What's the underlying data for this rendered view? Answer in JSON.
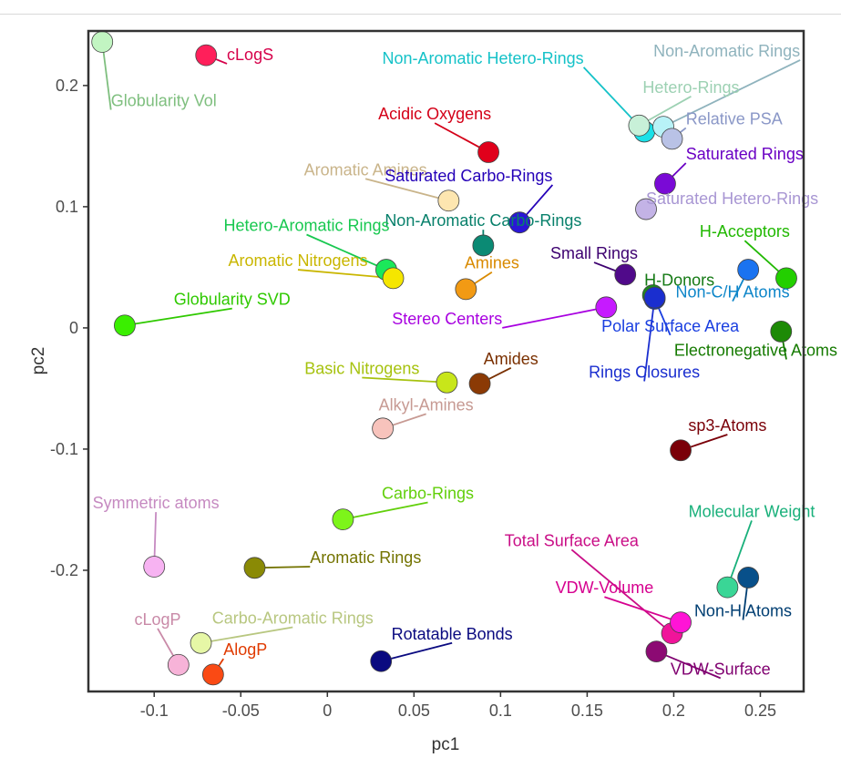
{
  "chart_data": {
    "type": "scatter",
    "title": "",
    "xlabel": "pc1",
    "ylabel": "pc2",
    "xlim": [
      -0.138,
      0.275
    ],
    "ylim": [
      -0.3,
      0.245
    ],
    "x_ticks": [
      {
        "value": -0.1,
        "label": "-0.1"
      },
      {
        "value": -0.05,
        "label": "-0.05"
      },
      {
        "value": 0,
        "label": "0"
      },
      {
        "value": 0.05,
        "label": "0.05"
      },
      {
        "value": 0.1,
        "label": "0.1"
      },
      {
        "value": 0.15,
        "label": "0.15"
      },
      {
        "value": 0.2,
        "label": "0.2"
      },
      {
        "value": 0.25,
        "label": "0.25"
      }
    ],
    "y_ticks": [
      {
        "value": 0.2,
        "label": "0.2"
      },
      {
        "value": 0.1,
        "label": "0.1"
      },
      {
        "value": 0,
        "label": "0"
      },
      {
        "value": -0.1,
        "label": "-0.1"
      },
      {
        "value": -0.2,
        "label": "-0.2"
      }
    ],
    "grid": false,
    "legend": "none",
    "points": [
      {
        "label": "Globularity Vol",
        "x": -0.13,
        "y": 0.236,
        "lx": -0.125,
        "ly": 0.183,
        "color": "#c2f5c2",
        "label_color": "#7fbf7f",
        "anchor": "start"
      },
      {
        "label": "cLogS",
        "x": -0.07,
        "y": 0.225,
        "lx": -0.058,
        "ly": 0.221,
        "color": "#ff1f5a",
        "label_color": "#d6004a",
        "anchor": "start"
      },
      {
        "label": "Non-Aromatic Hetero-Rings",
        "x": 0.183,
        "y": 0.162,
        "lx": 0.148,
        "ly": 0.218,
        "color": "#1ae1e8",
        "label_color": "#15c2c8",
        "anchor": "end"
      },
      {
        "label": "Non-Aromatic Rings",
        "x": 0.194,
        "y": 0.166,
        "lx": 0.273,
        "ly": 0.224,
        "color": "#b8f2f7",
        "label_color": "#8fb3bd",
        "anchor": "end"
      },
      {
        "label": "Hetero-Rings",
        "x": 0.18,
        "y": 0.167,
        "lx": 0.21,
        "ly": 0.194,
        "color": "#c8f0d8",
        "label_color": "#9dd1b3",
        "anchor": "middle"
      },
      {
        "label": "Relative PSA",
        "x": 0.199,
        "y": 0.156,
        "lx": 0.207,
        "ly": 0.168,
        "color": "#b9c2e6",
        "label_color": "#8a97c7",
        "anchor": "start"
      },
      {
        "label": "Acidic Oxygens",
        "x": 0.093,
        "y": 0.145,
        "lx": 0.062,
        "ly": 0.172,
        "color": "#e0001b",
        "label_color": "#d40018",
        "anchor": "middle"
      },
      {
        "label": "Saturated Rings",
        "x": 0.195,
        "y": 0.119,
        "lx": 0.207,
        "ly": 0.139,
        "color": "#7a0ad6",
        "label_color": "#6a00c4",
        "anchor": "start"
      },
      {
        "label": "Aromatic Amines",
        "x": 0.07,
        "y": 0.105,
        "lx": 0.022,
        "ly": 0.126,
        "color": "#fde6b0",
        "label_color": "#c9b48a",
        "anchor": "middle"
      },
      {
        "label": "Saturated Carbo-Rings",
        "x": 0.111,
        "y": 0.087,
        "lx": 0.13,
        "ly": 0.121,
        "color": "#2a16d6",
        "label_color": "#2400b8",
        "anchor": "end"
      },
      {
        "label": "Saturated Hetero-Rings",
        "x": 0.184,
        "y": 0.098,
        "lx": 0.184,
        "ly": 0.102,
        "color": "#c3b3e6",
        "label_color": "#a896d3",
        "anchor": "start"
      },
      {
        "label": "Non-Aromatic Carbo-Rings",
        "x": 0.09,
        "y": 0.068,
        "lx": 0.09,
        "ly": 0.084,
        "color": "#0b8a74",
        "label_color": "#08806b",
        "anchor": "middle"
      },
      {
        "label": "Hetero-Aromatic Rings",
        "x": 0.034,
        "y": 0.048,
        "lx": -0.012,
        "ly": 0.08,
        "color": "#1be85a",
        "label_color": "#18c850",
        "anchor": "middle"
      },
      {
        "label": "H-Acceptors",
        "x": 0.265,
        "y": 0.041,
        "lx": 0.241,
        "ly": 0.075,
        "color": "#23cf00",
        "label_color": "#20b800",
        "anchor": "middle"
      },
      {
        "label": "Aromatic Nitrogens",
        "x": 0.038,
        "y": 0.041,
        "lx": -0.017,
        "ly": 0.051,
        "color": "#f5e600",
        "label_color": "#c9b600",
        "anchor": "middle"
      },
      {
        "label": "Small Rings",
        "x": 0.172,
        "y": 0.044,
        "lx": 0.154,
        "ly": 0.057,
        "color": "#500a8a",
        "label_color": "#3d0070",
        "anchor": "middle"
      },
      {
        "label": "H-Donors",
        "x": 0.188,
        "y": 0.027,
        "lx": 0.183,
        "ly": 0.035,
        "color": "#1f8a1f",
        "label_color": "#157a15",
        "anchor": "start"
      },
      {
        "label": "Non-C/H Atoms",
        "x": 0.243,
        "y": 0.048,
        "lx": 0.234,
        "ly": 0.025,
        "color": "#1a73f0",
        "label_color": "#0e86c9",
        "anchor": "middle"
      },
      {
        "label": "Amines",
        "x": 0.08,
        "y": 0.032,
        "lx": 0.095,
        "ly": 0.049,
        "color": "#f29a14",
        "label_color": "#d98a00",
        "anchor": "middle"
      },
      {
        "label": "Globularity SVD",
        "x": -0.117,
        "y": 0.002,
        "lx": -0.055,
        "ly": 0.019,
        "color": "#3aef00",
        "label_color": "#2fc900",
        "anchor": "middle"
      },
      {
        "label": "Stereo Centers",
        "x": 0.161,
        "y": 0.017,
        "lx": 0.101,
        "ly": 0.003,
        "color": "#c61aff",
        "label_color": "#a800e0",
        "anchor": "end"
      },
      {
        "label": "Polar Surface Area",
        "x": 0.189,
        "y": 0.024,
        "lx": 0.198,
        "ly": -0.003,
        "color": "#0633c9",
        "label_color": "#1a3fe0",
        "anchor": "middle"
      },
      {
        "label": "Electronegative Atoms",
        "x": 0.262,
        "y": -0.003,
        "lx": 0.265,
        "ly": -0.023,
        "color": "#1d8a06",
        "label_color": "#157a00",
        "anchor": "middle"
      },
      {
        "label": "Amides",
        "x": 0.088,
        "y": -0.046,
        "lx": 0.106,
        "ly": -0.03,
        "color": "#8b3a05",
        "label_color": "#7a3000",
        "anchor": "middle"
      },
      {
        "label": "Basic Nitrogens",
        "x": 0.069,
        "y": -0.045,
        "lx": 0.02,
        "ly": -0.038,
        "color": "#c8e61a",
        "label_color": "#a6c20e",
        "anchor": "middle"
      },
      {
        "label": "Rings Closures",
        "x": 0.189,
        "y": 0.025,
        "lx": 0.183,
        "ly": -0.041,
        "color": "#1a2ecf",
        "label_color": "#1a2ecf",
        "anchor": "middle"
      },
      {
        "label": "Alkyl-Amines",
        "x": 0.032,
        "y": -0.083,
        "lx": 0.057,
        "ly": -0.068,
        "color": "#f7c3bc",
        "label_color": "#c79a93",
        "anchor": "middle"
      },
      {
        "label": "sp3-Atoms",
        "x": 0.204,
        "y": -0.101,
        "lx": 0.231,
        "ly": -0.085,
        "color": "#7a0008",
        "label_color": "#7a0008",
        "anchor": "middle"
      },
      {
        "label": "Carbo-Rings",
        "x": 0.009,
        "y": -0.158,
        "lx": 0.058,
        "ly": -0.141,
        "color": "#7df51a",
        "label_color": "#62cf0b",
        "anchor": "middle"
      },
      {
        "label": "Symmetric atoms",
        "x": -0.1,
        "y": -0.197,
        "lx": -0.099,
        "ly": -0.149,
        "color": "#f7b3f2",
        "label_color": "#c68ac1",
        "anchor": "middle"
      },
      {
        "label": "Molecular Weight",
        "x": 0.231,
        "y": -0.214,
        "lx": 0.245,
        "ly": -0.156,
        "color": "#3ad696",
        "label_color": "#18b07a",
        "anchor": "middle"
      },
      {
        "label": "Total Surface Area",
        "x": 0.199,
        "y": -0.252,
        "lx": 0.141,
        "ly": -0.18,
        "color": "#f0149a",
        "label_color": "#c90d86",
        "anchor": "middle"
      },
      {
        "label": "Aromatic Rings",
        "x": -0.042,
        "y": -0.198,
        "lx": -0.01,
        "ly": -0.194,
        "color": "#8a8a05",
        "label_color": "#737300",
        "anchor": "start"
      },
      {
        "label": "VDW-Volume",
        "x": 0.204,
        "y": -0.243,
        "lx": 0.16,
        "ly": -0.219,
        "color": "#ff14d6",
        "label_color": "#d6008f",
        "anchor": "middle"
      },
      {
        "label": "Non-H Atoms",
        "x": 0.243,
        "y": -0.206,
        "lx": 0.24,
        "ly": -0.238,
        "color": "#08508a",
        "label_color": "#003e72",
        "anchor": "middle"
      },
      {
        "label": "cLogP",
        "x": -0.086,
        "y": -0.278,
        "lx": -0.098,
        "ly": -0.245,
        "color": "#f7b3d8",
        "label_color": "#c98aa8",
        "anchor": "middle"
      },
      {
        "label": "Carbo-Aromatic Rings",
        "x": -0.073,
        "y": -0.26,
        "lx": -0.02,
        "ly": -0.244,
        "color": "#e6f7a6",
        "label_color": "#b8c780",
        "anchor": "middle"
      },
      {
        "label": "AlogP",
        "x": -0.066,
        "y": -0.286,
        "lx": -0.06,
        "ly": -0.27,
        "color": "#fa4a14",
        "label_color": "#e03a00",
        "anchor": "start"
      },
      {
        "label": "Rotatable Bonds",
        "x": 0.031,
        "y": -0.275,
        "lx": 0.072,
        "ly": -0.257,
        "color": "#0a0a80",
        "label_color": "#0a0a80",
        "anchor": "middle"
      },
      {
        "label": "VDW-Surface",
        "x": 0.19,
        "y": -0.267,
        "lx": 0.227,
        "ly": -0.286,
        "color": "#8c0a73",
        "label_color": "#800070",
        "anchor": "middle"
      }
    ]
  }
}
